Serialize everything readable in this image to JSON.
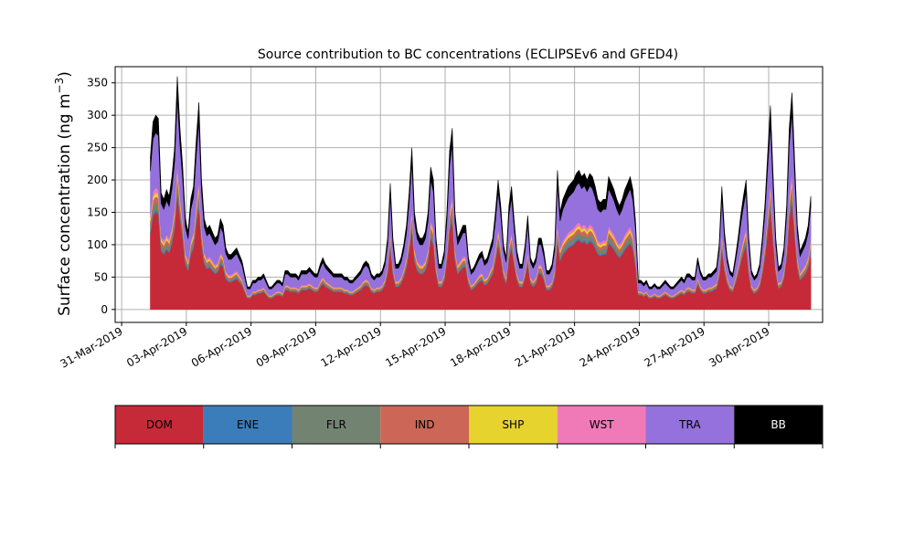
{
  "chart_data": {
    "type": "area",
    "stacked": true,
    "title": "Source contribution to BC concentrations (ECLIPSEv6 and GFED4)",
    "ylabel_main": "Surface concentration (ng m",
    "ylabel_sup": "−3",
    "ylabel_close": ")",
    "xlabel": "",
    "ylim": [
      -20,
      375
    ],
    "yticks": [
      0,
      50,
      100,
      150,
      200,
      250,
      300,
      350
    ],
    "xlim_days": [
      -0.3,
      32.5
    ],
    "xticks": [
      {
        "label": "31-Mar-2019",
        "day": 0
      },
      {
        "label": "03-Apr-2019",
        "day": 3
      },
      {
        "label": "06-Apr-2019",
        "day": 6
      },
      {
        "label": "09-Apr-2019",
        "day": 9
      },
      {
        "label": "12-Apr-2019",
        "day": 12
      },
      {
        "label": "15-Apr-2019",
        "day": 15
      },
      {
        "label": "18-Apr-2019",
        "day": 18
      },
      {
        "label": "21-Apr-2019",
        "day": 21
      },
      {
        "label": "24-Apr-2019",
        "day": 24
      },
      {
        "label": "27-Apr-2019",
        "day": 27
      },
      {
        "label": "30-Apr-2019",
        "day": 30
      }
    ],
    "grid": true,
    "x_start_day": 1.33,
    "x_step_days": 0.125,
    "total": [
      235,
      290,
      300,
      295,
      180,
      170,
      185,
      175,
      205,
      250,
      360,
      280,
      220,
      140,
      120,
      170,
      190,
      260,
      320,
      200,
      140,
      125,
      130,
      120,
      110,
      115,
      140,
      130,
      95,
      85,
      85,
      90,
      95,
      85,
      75,
      55,
      35,
      35,
      45,
      45,
      50,
      50,
      55,
      45,
      35,
      35,
      40,
      45,
      45,
      40,
      60,
      60,
      55,
      55,
      55,
      50,
      60,
      60,
      60,
      65,
      60,
      55,
      55,
      70,
      80,
      70,
      65,
      60,
      55,
      55,
      55,
      55,
      50,
      50,
      45,
      45,
      50,
      55,
      60,
      70,
      75,
      70,
      55,
      50,
      55,
      55,
      60,
      75,
      110,
      195,
      110,
      70,
      70,
      80,
      100,
      130,
      180,
      250,
      150,
      120,
      110,
      110,
      120,
      150,
      220,
      200,
      110,
      70,
      70,
      90,
      150,
      245,
      280,
      150,
      110,
      120,
      130,
      130,
      80,
      60,
      65,
      75,
      85,
      90,
      75,
      80,
      95,
      110,
      150,
      200,
      160,
      100,
      80,
      160,
      190,
      135,
      90,
      70,
      70,
      100,
      145,
      80,
      70,
      80,
      110,
      110,
      90,
      60,
      60,
      70,
      100,
      215,
      150,
      170,
      180,
      190,
      195,
      200,
      210,
      215,
      205,
      210,
      200,
      210,
      205,
      190,
      170,
      165,
      170,
      170,
      205,
      195,
      185,
      170,
      160,
      170,
      185,
      195,
      205,
      185,
      135,
      45,
      45,
      40,
      45,
      35,
      35,
      40,
      35,
      35,
      40,
      45,
      40,
      35,
      35,
      40,
      45,
      50,
      45,
      55,
      55,
      50,
      50,
      80,
      60,
      50,
      50,
      55,
      55,
      60,
      65,
      100,
      190,
      120,
      80,
      60,
      55,
      80,
      110,
      145,
      175,
      200,
      110,
      60,
      50,
      55,
      70,
      110,
      165,
      240,
      315,
      210,
      110,
      65,
      70,
      95,
      160,
      280,
      335,
      230,
      130,
      90,
      100,
      110,
      130,
      175
    ],
    "series": [
      {
        "name": "DOM",
        "color": "#c62a38",
        "frac": 0.5
      },
      {
        "name": "ENE",
        "color": "#3b7dba",
        "frac": 0.012
      },
      {
        "name": "FLR",
        "color": "#738372",
        "frac": 0.04
      },
      {
        "name": "IND",
        "color": "#cc6657",
        "frac": 0.03
      },
      {
        "name": "SHP",
        "color": "#e7d32d",
        "frac": 0.02
      },
      {
        "name": "WST",
        "color": "#f07ab8",
        "frac": 0.025
      },
      {
        "name": "TRA",
        "color": "#9471dc",
        "frac": 0.283
      },
      {
        "name": "BB",
        "color": "#000000",
        "frac": 0.09
      }
    ]
  }
}
